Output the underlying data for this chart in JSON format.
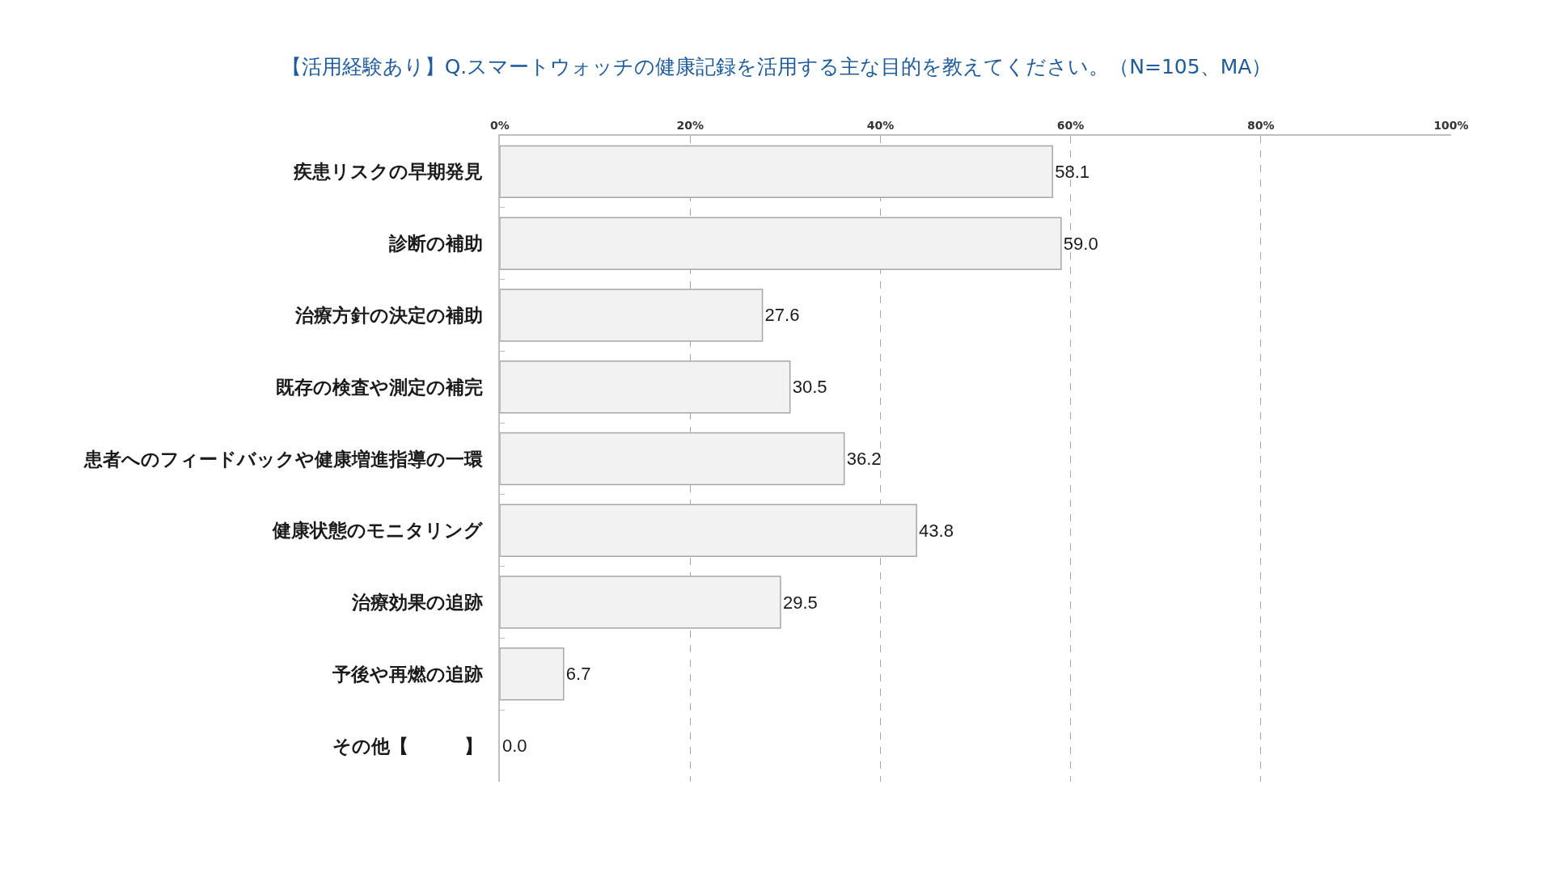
{
  "chart_data": {
    "type": "bar",
    "orientation": "horizontal",
    "title": "【活用経験あり】Q.スマートウォッチの健康記録を活用する主な目的を教えてください。（N=105、MA）",
    "categories": [
      "疾患リスクの早期発見",
      "診断の補助",
      "治療方針の決定の補助",
      "既存の検査や測定の補完",
      "患者へのフィードバックや健康増進指導の一環",
      "健康状態のモニタリング",
      "治療効果の追跡",
      "予後や再燃の追跡",
      "その他【　　　】"
    ],
    "values": [
      58.1,
      59.0,
      27.6,
      30.5,
      36.2,
      43.8,
      29.5,
      6.7,
      0.0
    ],
    "value_labels": [
      "58.1",
      "59.0",
      "27.6",
      "30.5",
      "36.2",
      "43.8",
      "29.5",
      "6.7",
      "0.0"
    ],
    "color": "#f2f2f2",
    "xlim": [
      0,
      100
    ],
    "xticks": [
      {
        "value": 0,
        "label": "0%"
      },
      {
        "value": 20,
        "label": "20%"
      },
      {
        "value": 40,
        "label": "40%"
      },
      {
        "value": 60,
        "label": "60%"
      },
      {
        "value": 80,
        "label": "80%"
      },
      {
        "value": 100,
        "label": "100%"
      }
    ],
    "grid": "x"
  }
}
